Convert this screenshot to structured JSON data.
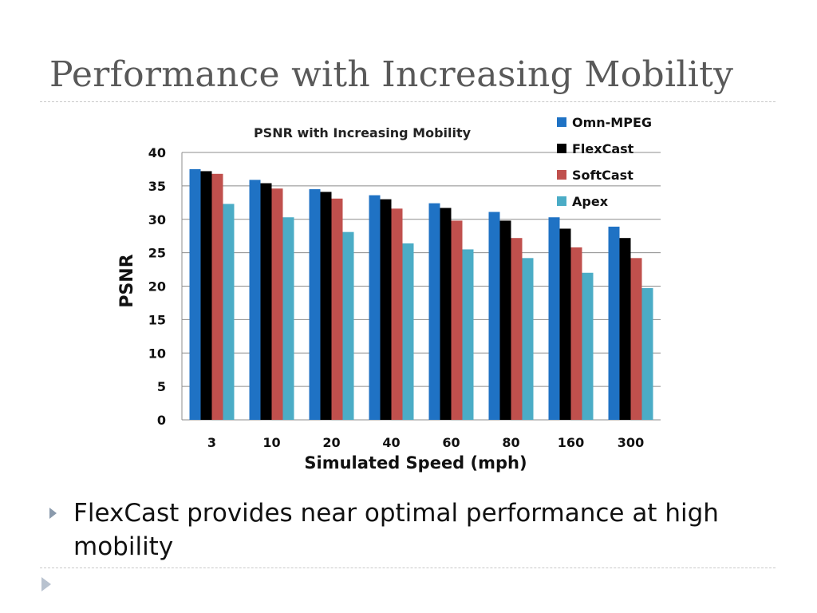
{
  "slide": {
    "title": "Performance with Increasing Mobility",
    "bullet_icon": "triangle-right-icon",
    "bullet": "FlexCast provides near optimal performance at high mobility",
    "footer_icon": "triangle-right-icon"
  },
  "chart_data": {
    "type": "bar",
    "title": "PSNR with Increasing Mobility",
    "xlabel": "Simulated Speed (mph)",
    "ylabel": "PSNR",
    "ylim": [
      0,
      40
    ],
    "yticks": [
      0,
      5,
      10,
      15,
      20,
      25,
      30,
      35,
      40
    ],
    "grid": true,
    "legend_position": "top-right",
    "categories": [
      "3",
      "10",
      "20",
      "40",
      "60",
      "80",
      "160",
      "300"
    ],
    "series": [
      {
        "name": "Omn-MPEG",
        "color": "#1f72c4",
        "values": [
          37.5,
          35.9,
          34.5,
          33.6,
          32.4,
          31.1,
          30.3,
          28.9
        ]
      },
      {
        "name": "FlexCast",
        "color": "#000000",
        "values": [
          37.2,
          35.4,
          34.1,
          33.0,
          31.7,
          29.8,
          28.6,
          27.2
        ]
      },
      {
        "name": "SoftCast",
        "color": "#c0504d",
        "values": [
          36.8,
          34.6,
          33.1,
          31.6,
          29.8,
          27.2,
          25.8,
          24.2
        ]
      },
      {
        "name": "Apex",
        "color": "#4bacc6",
        "values": [
          32.3,
          30.3,
          28.1,
          26.4,
          25.5,
          24.2,
          22.0,
          19.7
        ]
      }
    ]
  }
}
